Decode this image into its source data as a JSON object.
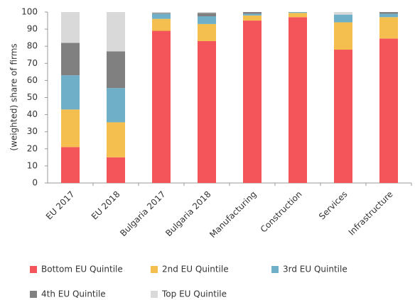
{
  "chart_data": {
    "type": "stacked_bar",
    "y_label": "(weighted) share of firms",
    "categories": [
      "EU 2017",
      "EU 2018",
      "Bulgaria 2017",
      "Bulgaria 2018",
      "Manufacturing",
      "Construction",
      "Services",
      "Infrastructure"
    ],
    "series": [
      {
        "name": "Bottom EU Quintile",
        "color": "#f4555a",
        "values": [
          21,
          15,
          89,
          83,
          95,
          97,
          78,
          84.5
        ]
      },
      {
        "name": "2nd EU Quintile",
        "color": "#f5bf4f",
        "values": [
          22,
          20.5,
          7,
          10,
          3,
          2.5,
          16,
          12.5
        ]
      },
      {
        "name": "3rd EU Quintile",
        "color": "#6fb0c8",
        "values": [
          20,
          20,
          3,
          4.5,
          1,
          0.5,
          4.5,
          2
        ]
      },
      {
        "name": "4th EU Quintile",
        "color": "#808080",
        "values": [
          19,
          21.5,
          0.5,
          2,
          1,
          0,
          0,
          1
        ]
      },
      {
        "name": "Top EU Quintile",
        "color": "#d9d9d9",
        "values": [
          18,
          23,
          0.5,
          0.5,
          0,
          0,
          1.5,
          0
        ]
      }
    ],
    "ylim": [
      0,
      100
    ],
    "yticks": [
      0,
      10,
      20,
      30,
      40,
      50,
      60,
      70,
      80,
      90,
      100
    ]
  }
}
